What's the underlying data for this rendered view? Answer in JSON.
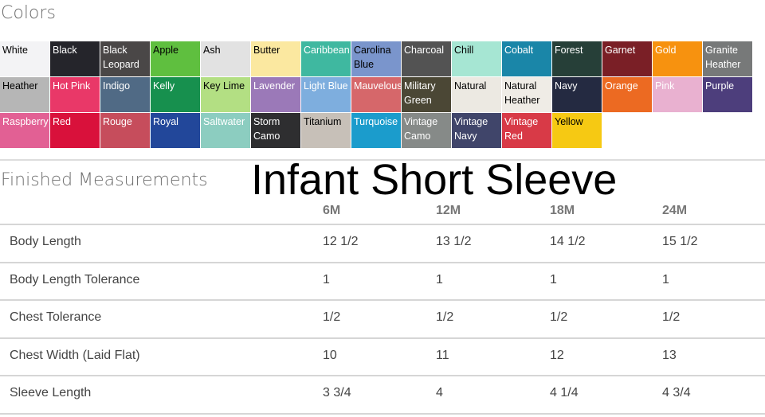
{
  "colors_title": "Colors",
  "swatches": [
    {
      "name": "White",
      "bg": "#f3f3f5",
      "fg": "#000"
    },
    {
      "name": "Black",
      "bg": "#25252b",
      "fg": "#fff"
    },
    {
      "name": "Black\nLeopard",
      "bg": "#4a4747",
      "fg": "#fff"
    },
    {
      "name": "Apple",
      "bg": "#5fbf3f",
      "fg": "#000"
    },
    {
      "name": "Ash",
      "bg": "#e2e2e2",
      "fg": "#000"
    },
    {
      "name": "Butter",
      "bg": "#fbe8a0",
      "fg": "#000"
    },
    {
      "name": "Caribbean",
      "bg": "#3fb8a0",
      "fg": "#fff"
    },
    {
      "name": "Carolina\nBlue",
      "bg": "#7a95cc",
      "fg": "#000"
    },
    {
      "name": "Charcoal",
      "bg": "#535353",
      "fg": "#fff"
    },
    {
      "name": "Chill",
      "bg": "#a6e6d3",
      "fg": "#000"
    },
    {
      "name": "Cobalt",
      "bg": "#1a86a8",
      "fg": "#fff"
    },
    {
      "name": "Forest",
      "bg": "#263f38",
      "fg": "#fff"
    },
    {
      "name": "Garnet",
      "bg": "#7a1f26",
      "fg": "#fff"
    },
    {
      "name": "Gold",
      "bg": "#f7920f",
      "fg": "#fff"
    },
    {
      "name": "Granite\nHeather",
      "bg": "#777979",
      "fg": "#fff"
    },
    {
      "name": "Heather",
      "bg": "#b6b6b6",
      "fg": "#000"
    },
    {
      "name": "Hot Pink",
      "bg": "#e93868",
      "fg": "#fff"
    },
    {
      "name": "Indigo",
      "bg": "#506a85",
      "fg": "#fff"
    },
    {
      "name": "Kelly",
      "bg": "#17904e",
      "fg": "#fff"
    },
    {
      "name": "Key Lime",
      "bg": "#b3df83",
      "fg": "#000"
    },
    {
      "name": "Lavender",
      "bg": "#9b79b8",
      "fg": "#fff"
    },
    {
      "name": "Light Blue",
      "bg": "#7eaede",
      "fg": "#fff"
    },
    {
      "name": "Mauvelous",
      "bg": "#d6676a",
      "fg": "#fff"
    },
    {
      "name": "Military\nGreen",
      "bg": "#4b4735",
      "fg": "#fff"
    },
    {
      "name": "Natural",
      "bg": "#ece9e2",
      "fg": "#000"
    },
    {
      "name": "Natural\nHeather",
      "bg": "#efece6",
      "fg": "#000"
    },
    {
      "name": "Navy",
      "bg": "#242a41",
      "fg": "#fff"
    },
    {
      "name": "Orange",
      "bg": "#ec6a22",
      "fg": "#fff"
    },
    {
      "name": "Pink",
      "bg": "#e9b1d0",
      "fg": "#fff"
    },
    {
      "name": "Purple",
      "bg": "#4d3e7c",
      "fg": "#fff"
    },
    {
      "name": "Raspberry",
      "bg": "#e26094",
      "fg": "#fff"
    },
    {
      "name": "Red",
      "bg": "#d9113b",
      "fg": "#fff"
    },
    {
      "name": "Rouge",
      "bg": "#c64d5c",
      "fg": "#fff"
    },
    {
      "name": "Royal",
      "bg": "#22479a",
      "fg": "#fff"
    },
    {
      "name": "Saltwater",
      "bg": "#8ccdc0",
      "fg": "#fff"
    },
    {
      "name": "Storm\nCamo",
      "bg": "#2e2e30",
      "fg": "#fff"
    },
    {
      "name": "Titanium",
      "bg": "#c7c0b8",
      "fg": "#000"
    },
    {
      "name": "Turquoise",
      "bg": "#1b9ccc",
      "fg": "#fff"
    },
    {
      "name": "Vintage\nCamo",
      "bg": "#868a88",
      "fg": "#fff"
    },
    {
      "name": "Vintage\nNavy",
      "bg": "#40456a",
      "fg": "#fff"
    },
    {
      "name": "Vintage\nRed",
      "bg": "#d83a47",
      "fg": "#fff"
    },
    {
      "name": "Yellow",
      "bg": "#f6c913",
      "fg": "#000"
    }
  ],
  "measurements_title": "Finished Measurements",
  "overlay_title": "Infant Short Sleeve",
  "table": {
    "headers": [
      "6M",
      "12M",
      "18M",
      "24M"
    ],
    "rows": [
      {
        "label": "Body Length",
        "values": [
          "12 1/2",
          "13 1/2",
          "14 1/2",
          "15 1/2"
        ]
      },
      {
        "label": "Body Length Tolerance",
        "values": [
          "1",
          "1",
          "1",
          "1"
        ]
      },
      {
        "label": "Chest Tolerance",
        "values": [
          "1/2",
          "1/2",
          "1/2",
          "1/2"
        ]
      },
      {
        "label": "Chest Width (Laid Flat)",
        "values": [
          "10",
          "11",
          "12",
          "13"
        ]
      },
      {
        "label": "Sleeve Length",
        "values": [
          "3 3/4",
          "4",
          "4 1/4",
          "4 3/4"
        ]
      }
    ]
  }
}
